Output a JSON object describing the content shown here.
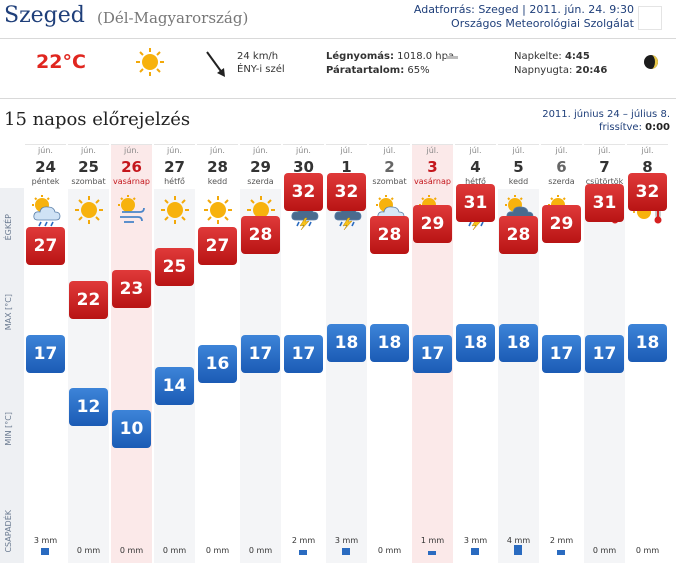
{
  "header": {
    "city": "Szeged",
    "region": "(Dél-Magyarország)",
    "source_line1": "Adatforrás: Szeged | 2011. jún. 24. 9:30",
    "source_line2": "Országos Meteorológiai Szolgálat"
  },
  "current": {
    "temp": "22°C",
    "icon": "sun-icon",
    "wind_speed": "24 km/h",
    "wind_dir": "ÉNY-i szél",
    "pressure_label": "Légnyomás:",
    "pressure_value": "1018.0 hpa",
    "humidity_label": "Páratartalom:",
    "humidity_value": "65%",
    "sunrise_label": "Napkelte:",
    "sunrise_value": "4:45",
    "sunset_label": "Napnyugta:",
    "sunset_value": "20:46",
    "moon_icon": "moon-phase-icon"
  },
  "forecast": {
    "title": "15 napos előrejelzés",
    "range": "2011. június 24 – július 8.",
    "updated_label": "frissítve:",
    "updated_value": "0:00",
    "side_labels": {
      "icon": "ÉGKÉP",
      "max": "MAX [°C]",
      "min": "MIN [°C]",
      "precip": "CSAPADÉK"
    },
    "days": [
      {
        "month": "jún.",
        "day": "24",
        "weekday": "péntek",
        "icon": "sun-cloud-rain-icon",
        "max": 27,
        "min": 17,
        "precip": "3 mm",
        "precip_mm": 3
      },
      {
        "month": "jún.",
        "day": "25",
        "weekday": "szombat",
        "icon": "sun-icon",
        "max": 22,
        "min": 12,
        "precip": "0 mm",
        "precip_mm": 0
      },
      {
        "month": "jún.",
        "day": "26",
        "weekday": "vasárnap",
        "icon": "sun-wind-icon",
        "max": 23,
        "min": 10,
        "precip": "0 mm",
        "precip_mm": 0
      },
      {
        "month": "jún.",
        "day": "27",
        "weekday": "hétfő",
        "icon": "sun-icon",
        "max": 25,
        "min": 14,
        "precip": "0 mm",
        "precip_mm": 0
      },
      {
        "month": "jún.",
        "day": "28",
        "weekday": "kedd",
        "icon": "sun-icon",
        "max": 27,
        "min": 16,
        "precip": "0 mm",
        "precip_mm": 0
      },
      {
        "month": "jún.",
        "day": "29",
        "weekday": "szerda",
        "icon": "sun-icon",
        "max": 28,
        "min": 17,
        "precip": "0 mm",
        "precip_mm": 0
      },
      {
        "month": "jún.",
        "day": "30",
        "weekday": "csütörtök",
        "icon": "sun-thunderstorm-icon",
        "max": 32,
        "min": 17,
        "precip": "2 mm",
        "precip_mm": 2
      },
      {
        "month": "júl.",
        "day": "1",
        "weekday": "péntek",
        "icon": "sun-thunderstorm-icon",
        "max": 32,
        "min": 18,
        "precip": "3 mm",
        "precip_mm": 3
      },
      {
        "month": "júl.",
        "day": "2",
        "weekday": "szombat",
        "icon": "sun-cloud-icon",
        "max": 28,
        "min": 18,
        "precip": "0 mm",
        "precip_mm": 0
      },
      {
        "month": "júl.",
        "day": "3",
        "weekday": "vasárnap",
        "icon": "thunderstorm-icon",
        "max": 29,
        "min": 17,
        "precip": "1 mm",
        "precip_mm": 1
      },
      {
        "month": "júl.",
        "day": "4",
        "weekday": "hétfő",
        "icon": "sun-thunderstorm-icon",
        "max": 31,
        "min": 18,
        "precip": "3 mm",
        "precip_mm": 3
      },
      {
        "month": "júl.",
        "day": "5",
        "weekday": "kedd",
        "icon": "sun-thunderstorm-icon",
        "max": 28,
        "min": 18,
        "precip": "4 mm",
        "precip_mm": 4
      },
      {
        "month": "júl.",
        "day": "6",
        "weekday": "szerda",
        "icon": "sun-cloud-rain-icon",
        "max": 29,
        "min": 17,
        "precip": "2 mm",
        "precip_mm": 2
      },
      {
        "month": "júl.",
        "day": "7",
        "weekday": "csütörtök",
        "icon": "sun-hot-icon",
        "max": 31,
        "min": 17,
        "precip": "0 mm",
        "precip_mm": 0
      },
      {
        "month": "júl.",
        "day": "8",
        "weekday": "péntek",
        "icon": "sun-hot-icon",
        "max": 32,
        "min": 18,
        "precip": "0 mm",
        "precip_mm": 0
      }
    ]
  }
}
